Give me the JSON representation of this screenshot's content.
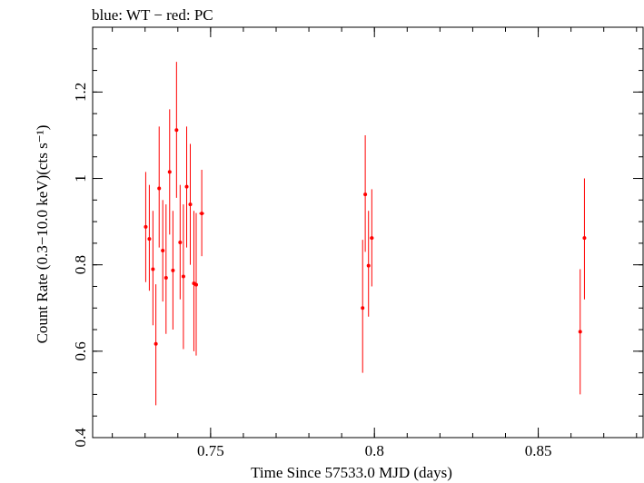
{
  "header": {
    "title": "blue: WT − red: PC"
  },
  "colors": {
    "pc": "#ff0000",
    "wt": "#0000ff",
    "axes": "#000000",
    "background": "#ffffff"
  },
  "chart_data": {
    "type": "scatter",
    "title": "blue: WT − red: PC",
    "xlabel": "Time Since 57533.0 MJD (days)",
    "ylabel": "Count Rate (0.3−10.0 keV)(cts s⁻¹)",
    "xlim": [
      0.714,
      0.882
    ],
    "ylim": [
      0.4,
      1.35
    ],
    "x_ticks": [
      {
        "value": 0.75,
        "label": "0.75"
      },
      {
        "value": 0.8,
        "label": "0.8"
      },
      {
        "value": 0.85,
        "label": "0.85"
      }
    ],
    "y_ticks": [
      {
        "value": 0.4,
        "label": "0.4"
      },
      {
        "value": 0.6,
        "label": "0.6"
      },
      {
        "value": 0.8,
        "label": "0.8"
      },
      {
        "value": 1.0,
        "label": "1"
      },
      {
        "value": 1.2,
        "label": "1.2"
      }
    ],
    "x_minor_step": 0.01,
    "y_minor_step": 0.05,
    "grid": false,
    "legend": "none",
    "series": [
      {
        "name": "PC",
        "color": "#ff0000",
        "points": [
          {
            "x": 0.7302,
            "xerr": 0.0005,
            "y": 0.888,
            "ylo": 0.76,
            "yhi": 1.015
          },
          {
            "x": 0.7313,
            "xerr": 0.0005,
            "y": 0.86,
            "ylo": 0.74,
            "yhi": 0.985
          },
          {
            "x": 0.7324,
            "xerr": 0.0005,
            "y": 0.79,
            "ylo": 0.66,
            "yhi": 0.925
          },
          {
            "x": 0.7333,
            "xerr": 0.0005,
            "y": 0.617,
            "ylo": 0.475,
            "yhi": 0.755
          },
          {
            "x": 0.7343,
            "xerr": 0.0005,
            "y": 0.977,
            "ylo": 0.84,
            "yhi": 1.12
          },
          {
            "x": 0.7354,
            "xerr": 0.0005,
            "y": 0.833,
            "ylo": 0.715,
            "yhi": 0.95
          },
          {
            "x": 0.7364,
            "xerr": 0.0005,
            "y": 0.77,
            "ylo": 0.64,
            "yhi": 0.94
          },
          {
            "x": 0.7375,
            "xerr": 0.0005,
            "y": 1.015,
            "ylo": 0.87,
            "yhi": 1.16
          },
          {
            "x": 0.7385,
            "xerr": 0.0005,
            "y": 0.787,
            "ylo": 0.65,
            "yhi": 0.925
          },
          {
            "x": 0.7396,
            "xerr": 0.0005,
            "y": 1.112,
            "ylo": 0.955,
            "yhi": 1.27
          },
          {
            "x": 0.7407,
            "xerr": 0.0005,
            "y": 0.852,
            "ylo": 0.72,
            "yhi": 0.985
          },
          {
            "x": 0.7417,
            "xerr": 0.0005,
            "y": 0.773,
            "ylo": 0.605,
            "yhi": 0.94
          },
          {
            "x": 0.7427,
            "xerr": 0.0005,
            "y": 0.981,
            "ylo": 0.84,
            "yhi": 1.12
          },
          {
            "x": 0.7438,
            "xerr": 0.0005,
            "y": 0.94,
            "ylo": 0.8,
            "yhi": 1.08
          },
          {
            "x": 0.7449,
            "xerr": 0.0005,
            "y": 0.757,
            "ylo": 0.6,
            "yhi": 0.925
          },
          {
            "x": 0.7456,
            "xerr": 0.0005,
            "y": 0.754,
            "ylo": 0.59,
            "yhi": 0.92
          },
          {
            "x": 0.7473,
            "xerr": 0.0008,
            "y": 0.919,
            "ylo": 0.82,
            "yhi": 1.02
          },
          {
            "x": 0.7964,
            "xerr": 0.0003,
            "y": 0.7,
            "ylo": 0.55,
            "yhi": 0.858
          },
          {
            "x": 0.7972,
            "xerr": 0.0003,
            "y": 0.963,
            "ylo": 0.83,
            "yhi": 1.1
          },
          {
            "x": 0.7982,
            "xerr": 0.0003,
            "y": 0.798,
            "ylo": 0.68,
            "yhi": 0.925
          },
          {
            "x": 0.7992,
            "xerr": 0.0006,
            "y": 0.862,
            "ylo": 0.75,
            "yhi": 0.975
          },
          {
            "x": 0.8628,
            "xerr": 0.0003,
            "y": 0.645,
            "ylo": 0.5,
            "yhi": 0.79
          },
          {
            "x": 0.8641,
            "xerr": 0.0003,
            "y": 0.862,
            "ylo": 0.72,
            "yhi": 1.0
          }
        ]
      }
    ]
  }
}
